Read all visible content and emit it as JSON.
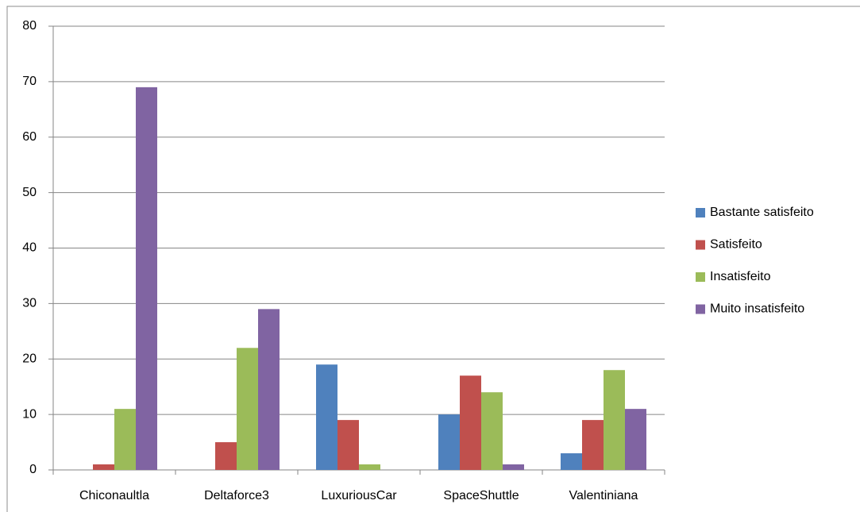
{
  "chart_data": {
    "type": "bar",
    "categories": [
      "Chiconaultla",
      "Deltaforce3",
      "LuxuriousCar",
      "SpaceShuttle",
      "Valentiniana"
    ],
    "series": [
      {
        "name": "Bastante satisfeito",
        "color": "#4f81bd",
        "values": [
          0,
          0,
          19,
          10,
          3
        ]
      },
      {
        "name": "Satisfeito",
        "color": "#c0504d",
        "values": [
          1,
          5,
          9,
          17,
          9
        ]
      },
      {
        "name": "Insatisfeito",
        "color": "#9bbb59",
        "values": [
          11,
          22,
          1,
          14,
          18
        ]
      },
      {
        "name": "Muito insatisfeito",
        "color": "#8064a2",
        "values": [
          69,
          29,
          0,
          1,
          11
        ]
      }
    ],
    "ylim": [
      0,
      80
    ],
    "yticks": [
      0,
      10,
      20,
      30,
      40,
      50,
      60,
      70,
      80
    ],
    "grid": true,
    "legend": "right"
  }
}
